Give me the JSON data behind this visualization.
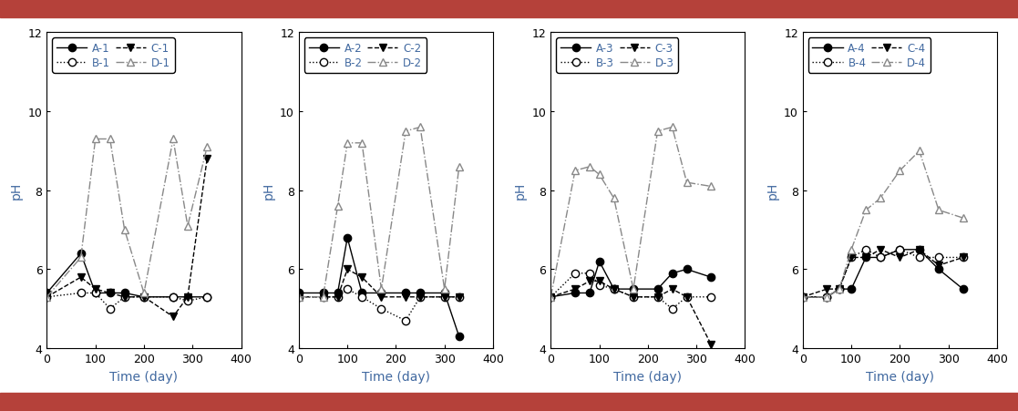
{
  "panels": [
    {
      "series": {
        "A-1": {
          "x": [
            0,
            70,
            100,
            130,
            160,
            200,
            260,
            290,
            330
          ],
          "y": [
            5.4,
            6.4,
            5.4,
            5.4,
            5.4,
            5.3,
            5.3,
            5.3,
            5.3
          ],
          "style": "solid",
          "marker": "o",
          "filled": true
        },
        "B-1": {
          "x": [
            0,
            70,
            100,
            130,
            160,
            200,
            260,
            290,
            330
          ],
          "y": [
            5.3,
            5.4,
            5.4,
            5.0,
            5.3,
            5.3,
            5.3,
            5.2,
            5.3
          ],
          "style": "dotted",
          "marker": "o",
          "filled": false
        },
        "C-1": {
          "x": [
            0,
            70,
            100,
            130,
            160,
            200,
            260,
            290,
            330
          ],
          "y": [
            5.3,
            5.8,
            5.5,
            5.4,
            5.3,
            5.3,
            4.8,
            5.3,
            8.8
          ],
          "style": "dashed",
          "marker": "v",
          "filled": true
        },
        "D-1": {
          "x": [
            0,
            70,
            100,
            130,
            160,
            200,
            260,
            290,
            330
          ],
          "y": [
            5.3,
            6.3,
            9.3,
            9.3,
            7.0,
            5.4,
            9.3,
            7.1,
            9.1
          ],
          "style": "dashdot",
          "marker": "^",
          "filled": false
        }
      }
    },
    {
      "series": {
        "A-2": {
          "x": [
            0,
            50,
            80,
            100,
            130,
            170,
            220,
            250,
            300,
            330
          ],
          "y": [
            5.4,
            5.4,
            5.4,
            6.8,
            5.4,
            5.4,
            5.4,
            5.4,
            5.4,
            4.3
          ],
          "style": "solid",
          "marker": "o",
          "filled": true
        },
        "B-2": {
          "x": [
            0,
            50,
            80,
            100,
            130,
            170,
            220,
            250,
            300,
            330
          ],
          "y": [
            5.3,
            5.3,
            5.3,
            5.5,
            5.3,
            5.0,
            4.7,
            5.3,
            5.3,
            5.3
          ],
          "style": "dotted",
          "marker": "o",
          "filled": false
        },
        "C-2": {
          "x": [
            0,
            50,
            80,
            100,
            130,
            170,
            220,
            250,
            300,
            330
          ],
          "y": [
            5.3,
            5.3,
            5.3,
            6.0,
            5.8,
            5.3,
            5.3,
            5.3,
            5.3,
            5.3
          ],
          "style": "dashed",
          "marker": "v",
          "filled": true
        },
        "D-2": {
          "x": [
            0,
            50,
            80,
            100,
            130,
            170,
            220,
            250,
            300,
            330
          ],
          "y": [
            5.3,
            5.3,
            7.6,
            9.2,
            9.2,
            5.5,
            9.5,
            9.6,
            5.5,
            8.6
          ],
          "style": "dashdot",
          "marker": "^",
          "filled": false
        }
      }
    },
    {
      "series": {
        "A-3": {
          "x": [
            0,
            50,
            80,
            100,
            130,
            170,
            220,
            250,
            280,
            330
          ],
          "y": [
            5.3,
            5.4,
            5.4,
            6.2,
            5.5,
            5.5,
            5.5,
            5.9,
            6.0,
            5.8
          ],
          "style": "solid",
          "marker": "o",
          "filled": true
        },
        "B-3": {
          "x": [
            0,
            50,
            80,
            100,
            130,
            170,
            220,
            250,
            280,
            330
          ],
          "y": [
            5.3,
            5.9,
            5.9,
            5.6,
            5.5,
            5.3,
            5.3,
            5.0,
            5.3,
            5.3
          ],
          "style": "dotted",
          "marker": "o",
          "filled": false
        },
        "C-3": {
          "x": [
            0,
            50,
            80,
            100,
            130,
            170,
            220,
            250,
            280,
            330
          ],
          "y": [
            5.3,
            5.5,
            5.7,
            5.7,
            5.5,
            5.3,
            5.3,
            5.5,
            5.3,
            4.1
          ],
          "style": "dashed",
          "marker": "v",
          "filled": true
        },
        "D-3": {
          "x": [
            0,
            50,
            80,
            100,
            130,
            170,
            220,
            250,
            280,
            330
          ],
          "y": [
            5.3,
            8.5,
            8.6,
            8.4,
            7.8,
            5.5,
            9.5,
            9.6,
            8.2,
            8.1
          ],
          "style": "dashdot",
          "marker": "^",
          "filled": false
        }
      }
    },
    {
      "series": {
        "A-4": {
          "x": [
            0,
            50,
            75,
            100,
            130,
            160,
            200,
            240,
            280,
            330
          ],
          "y": [
            5.3,
            5.3,
            5.5,
            5.5,
            6.3,
            6.3,
            6.5,
            6.5,
            6.0,
            5.5
          ],
          "style": "solid",
          "marker": "o",
          "filled": true
        },
        "B-4": {
          "x": [
            0,
            50,
            75,
            100,
            130,
            160,
            200,
            240,
            280,
            330
          ],
          "y": [
            5.3,
            5.3,
            5.5,
            6.3,
            6.5,
            6.3,
            6.5,
            6.3,
            6.3,
            6.3
          ],
          "style": "dotted",
          "marker": "o",
          "filled": false
        },
        "C-4": {
          "x": [
            0,
            50,
            75,
            100,
            130,
            160,
            200,
            240,
            280,
            330
          ],
          "y": [
            5.3,
            5.5,
            5.5,
            6.3,
            6.3,
            6.5,
            6.3,
            6.5,
            6.1,
            6.3
          ],
          "style": "dashed",
          "marker": "v",
          "filled": true
        },
        "D-4": {
          "x": [
            0,
            50,
            75,
            100,
            130,
            160,
            200,
            240,
            280,
            330
          ],
          "y": [
            5.3,
            5.3,
            5.5,
            6.5,
            7.5,
            7.8,
            8.5,
            9.0,
            7.5,
            7.3
          ],
          "style": "dashdot",
          "marker": "^",
          "filled": false
        }
      }
    }
  ],
  "ylim": [
    4,
    12
  ],
  "xlim": [
    0,
    400
  ],
  "yticks": [
    4,
    6,
    8,
    10,
    12
  ],
  "xticks": [
    0,
    100,
    200,
    300,
    400
  ],
  "xlabel": "Time (day)",
  "ylabel": "pH",
  "bg_color": "#ffffff",
  "border_color": "#b5413a",
  "label_color": "#4169a0",
  "line_color": "#000000",
  "D_line_color": "#888888",
  "legend_fontsize": 8.5,
  "tick_fontsize": 9,
  "axis_label_fontsize": 10,
  "marker_size": 6,
  "line_width": 1.0
}
